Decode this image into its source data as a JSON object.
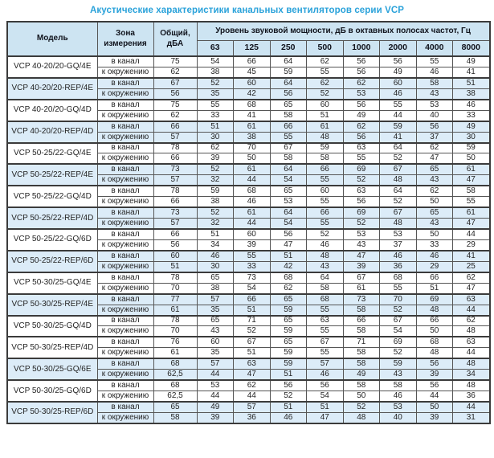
{
  "title": "Акустические характеристики канальных вентиляторов  серии VCP",
  "colors": {
    "title": "#2aa2da",
    "header_bg": "#cde4f2",
    "band_bg": "#dcecf8",
    "border": "#565656",
    "border_strong": "#3b3b3b"
  },
  "table": {
    "headers": {
      "model": "Модель",
      "zone": "Зона измерения",
      "total": "Общий, дБА",
      "spl_group": "Уровень звуковой мощности, дБ в октавных полосах частот, Гц",
      "frequencies": [
        "63",
        "125",
        "250",
        "500",
        "1000",
        "2000",
        "4000",
        "8000"
      ]
    },
    "zone_labels": [
      "в канал",
      "к окружению"
    ],
    "groups": [
      {
        "model": "VCP 40-20/20-GQ/4E",
        "shaded": false,
        "rows": [
          {
            "zone": "в канал",
            "total": "75",
            "levels": [
              "54",
              "66",
              "64",
              "62",
              "56",
              "56",
              "55",
              "49"
            ]
          },
          {
            "zone": "к окружению",
            "total": "62",
            "levels": [
              "38",
              "45",
              "59",
              "55",
              "56",
              "49",
              "46",
              "41"
            ]
          }
        ]
      },
      {
        "model": "VCP 40-20/20-REP/4E",
        "shaded": true,
        "rows": [
          {
            "zone": "в канал",
            "total": "67",
            "levels": [
              "52",
              "60",
              "64",
              "62",
              "62",
              "60",
              "58",
              "51"
            ]
          },
          {
            "zone": "к окружению",
            "total": "56",
            "levels": [
              "35",
              "42",
              "56",
              "52",
              "53",
              "46",
              "43",
              "38"
            ]
          }
        ]
      },
      {
        "model": "VCP 40-20/20-GQ/4D",
        "shaded": false,
        "rows": [
          {
            "zone": "в канал",
            "total": "75",
            "levels": [
              "55",
              "68",
              "65",
              "60",
              "56",
              "55",
              "53",
              "46"
            ]
          },
          {
            "zone": "к окружению",
            "total": "62",
            "levels": [
              "33",
              "41",
              "58",
              "51",
              "49",
              "44",
              "40",
              "33"
            ]
          }
        ]
      },
      {
        "model": "VCP 40-20/20-REP/4D",
        "shaded": true,
        "rows": [
          {
            "zone": "в канал",
            "total": "66",
            "levels": [
              "51",
              "61",
              "66",
              "61",
              "62",
              "59",
              "56",
              "49"
            ]
          },
          {
            "zone": "к окружению",
            "total": "57",
            "levels": [
              "30",
              "38",
              "55",
              "48",
              "56",
              "41",
              "37",
              "30"
            ]
          }
        ]
      },
      {
        "model": "VCP 50-25/22-GQ/4E",
        "shaded": false,
        "rows": [
          {
            "zone": "в канал",
            "total": "78",
            "levels": [
              "62",
              "70",
              "67",
              "59",
              "63",
              "64",
              "62",
              "59"
            ]
          },
          {
            "zone": "к окружению",
            "total": "66",
            "levels": [
              "39",
              "50",
              "58",
              "58",
              "55",
              "52",
              "47",
              "50"
            ]
          }
        ]
      },
      {
        "model": "VCP 50-25/22-REP/4E",
        "shaded": true,
        "rows": [
          {
            "zone": "в канал",
            "total": "73",
            "levels": [
              "52",
              "61",
              "64",
              "66",
              "69",
              "67",
              "65",
              "61"
            ]
          },
          {
            "zone": "к окружению",
            "total": "57",
            "levels": [
              "32",
              "44",
              "54",
              "55",
              "52",
              "48",
              "43",
              "47"
            ]
          }
        ]
      },
      {
        "model": "VCP 50-25/22-GQ/4D",
        "shaded": false,
        "rows": [
          {
            "zone": "в канал",
            "total": "78",
            "levels": [
              "59",
              "68",
              "65",
              "60",
              "63",
              "64",
              "62",
              "58"
            ]
          },
          {
            "zone": "к окружению",
            "total": "66",
            "levels": [
              "38",
              "46",
              "53",
              "55",
              "56",
              "52",
              "50",
              "55"
            ]
          }
        ]
      },
      {
        "model": "VCP 50-25/22-REP/4D",
        "shaded": true,
        "rows": [
          {
            "zone": "в канал",
            "total": "73",
            "levels": [
              "52",
              "61",
              "64",
              "66",
              "69",
              "67",
              "65",
              "61"
            ]
          },
          {
            "zone": "к окружению",
            "total": "57",
            "levels": [
              "32",
              "44",
              "54",
              "55",
              "52",
              "48",
              "43",
              "47"
            ]
          }
        ]
      },
      {
        "model": "VCP 50-25/22-GQ/6D",
        "shaded": false,
        "rows": [
          {
            "zone": "в канал",
            "total": "66",
            "levels": [
              "51",
              "60",
              "56",
              "52",
              "53",
              "53",
              "50",
              "44"
            ]
          },
          {
            "zone": "к окружению",
            "total": "56",
            "levels": [
              "34",
              "39",
              "47",
              "46",
              "43",
              "37",
              "33",
              "29"
            ]
          }
        ]
      },
      {
        "model": "VCP 50-25/22-REP/6D",
        "shaded": true,
        "rows": [
          {
            "zone": "в канал",
            "total": "60",
            "levels": [
              "46",
              "55",
              "51",
              "48",
              "47",
              "46",
              "46",
              "41"
            ]
          },
          {
            "zone": "к окружению",
            "total": "51",
            "levels": [
              "30",
              "33",
              "42",
              "43",
              "39",
              "36",
              "29",
              "25"
            ]
          }
        ]
      },
      {
        "model": "VCP 50-30/25-GQ/4E",
        "shaded": false,
        "rows": [
          {
            "zone": "в канал",
            "total": "78",
            "levels": [
              "65",
              "73",
              "68",
              "64",
              "67",
              "68",
              "66",
              "62"
            ]
          },
          {
            "zone": "к окружению",
            "total": "70",
            "levels": [
              "38",
              "54",
              "62",
              "58",
              "61",
              "55",
              "51",
              "47"
            ]
          }
        ]
      },
      {
        "model": "VCP 50-30/25-REP/4E",
        "shaded": true,
        "rows": [
          {
            "zone": "в канал",
            "total": "77",
            "levels": [
              "57",
              "66",
              "65",
              "68",
              "73",
              "70",
              "69",
              "63"
            ]
          },
          {
            "zone": "к окружению",
            "total": "61",
            "levels": [
              "35",
              "51",
              "59",
              "55",
              "58",
              "52",
              "48",
              "44"
            ]
          }
        ]
      },
      {
        "model": "VCP 50-30/25-GQ/4D",
        "shaded": false,
        "rows": [
          {
            "zone": "в канал",
            "total": "78",
            "levels": [
              "65",
              "71",
              "65",
              "63",
              "66",
              "67",
              "66",
              "62"
            ]
          },
          {
            "zone": "к окружению",
            "total": "70",
            "levels": [
              "43",
              "52",
              "59",
              "55",
              "58",
              "54",
              "50",
              "48"
            ]
          }
        ]
      },
      {
        "model": "VCP 50-30/25-REP/4D",
        "shaded": false,
        "rows": [
          {
            "zone": "в канал",
            "total": "76",
            "levels": [
              "60",
              "67",
              "65",
              "67",
              "71",
              "69",
              "68",
              "63"
            ]
          },
          {
            "zone": "к окружению",
            "total": "61",
            "levels": [
              "35",
              "51",
              "59",
              "55",
              "58",
              "52",
              "48",
              "44"
            ]
          }
        ]
      },
      {
        "model": "VCP 50-30/25-GQ/6E",
        "shaded": true,
        "rows": [
          {
            "zone": "в канал",
            "total": "68",
            "levels": [
              "57",
              "63",
              "59",
              "57",
              "58",
              "59",
              "56",
              "48"
            ]
          },
          {
            "zone": "к окружению",
            "total": "62,5",
            "levels": [
              "44",
              "47",
              "51",
              "46",
              "49",
              "43",
              "39",
              "34"
            ]
          }
        ]
      },
      {
        "model": "VCP 50-30/25-GQ/6D",
        "shaded": false,
        "rows": [
          {
            "zone": "в канал",
            "total": "68",
            "levels": [
              "53",
              "62",
              "56",
              "56",
              "58",
              "58",
              "56",
              "48"
            ]
          },
          {
            "zone": "к окружению",
            "total": "62,5",
            "levels": [
              "44",
              "44",
              "52",
              "54",
              "50",
              "46",
              "44",
              "36"
            ]
          }
        ]
      },
      {
        "model": "VCP 50-30/25-REP/6D",
        "shaded": true,
        "rows": [
          {
            "zone": "в канал",
            "total": "65",
            "levels": [
              "49",
              "57",
              "51",
              "51",
              "52",
              "53",
              "50",
              "44"
            ]
          },
          {
            "zone": "к окружению",
            "total": "58",
            "levels": [
              "39",
              "36",
              "46",
              "47",
              "48",
              "40",
              "39",
              "31"
            ]
          }
        ]
      }
    ]
  }
}
